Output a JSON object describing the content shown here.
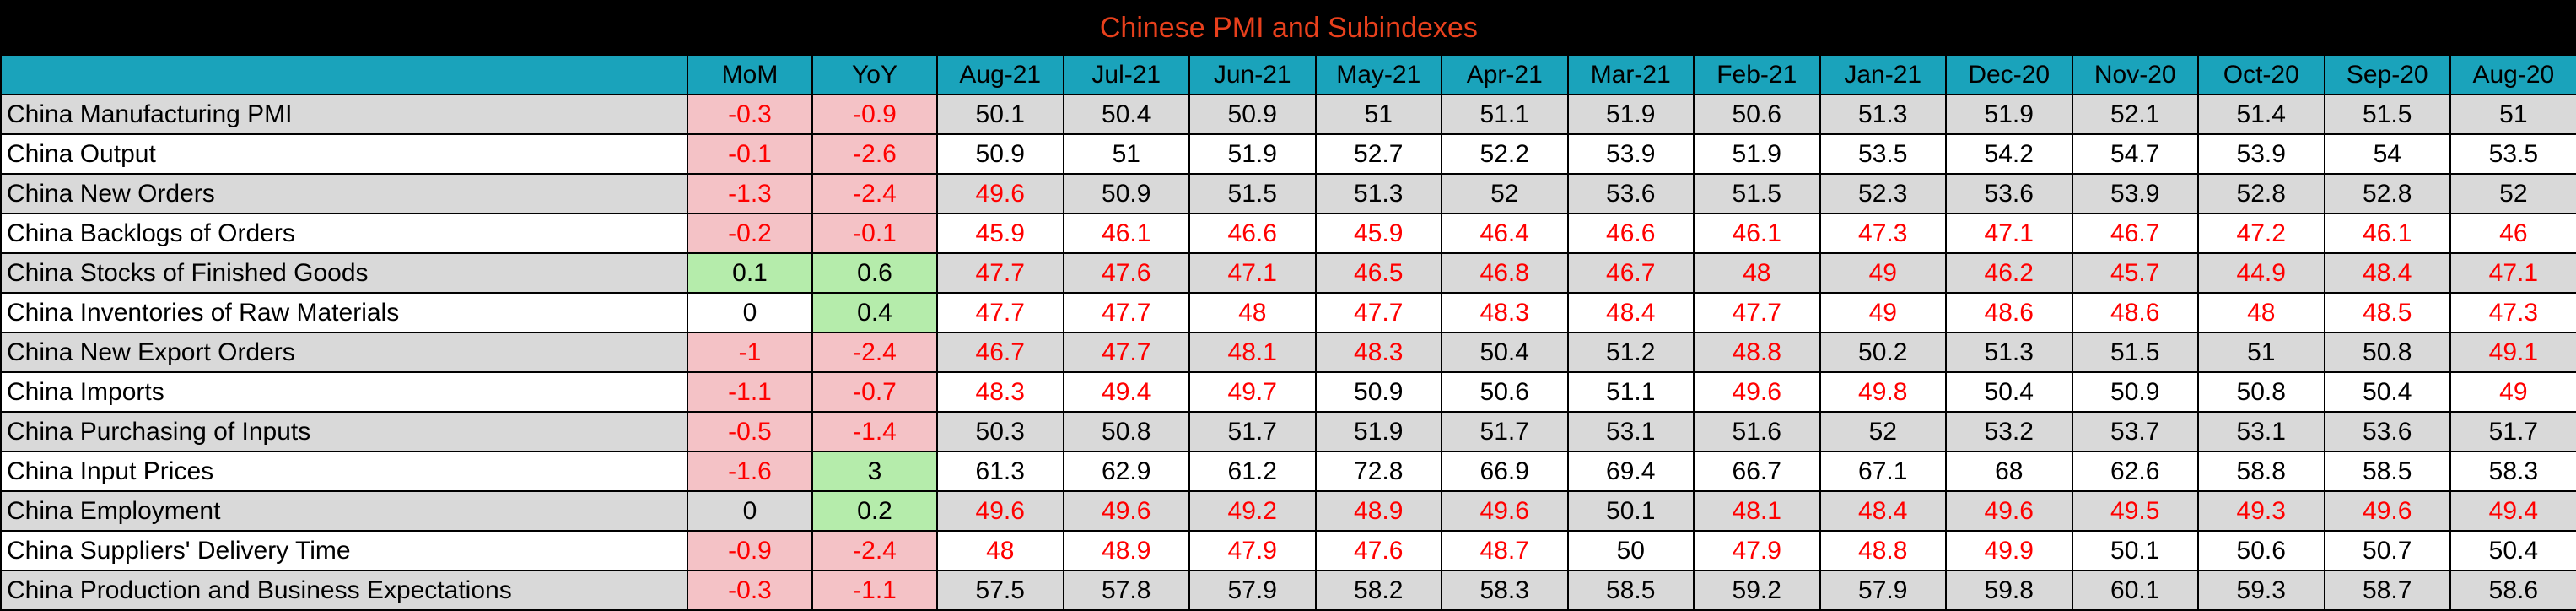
{
  "title": "Chinese PMI and Subindexes",
  "colors": {
    "title_bg": "#000000",
    "title_text": "#e8401c",
    "header_bg": "#1aa3bb",
    "row_shade": "#d9d9d9",
    "below_50_text": "#ff0000",
    "negative_change_bg": "#f4c2c6",
    "positive_change_bg": "#b5ecab"
  },
  "columns": [
    "",
    "MoM",
    "YoY",
    "Aug-21",
    "Jul-21",
    "Jun-21",
    "May-21",
    "Apr-21",
    "Mar-21",
    "Feb-21",
    "Jan-21",
    "Dec-20",
    "Nov-20",
    "Oct-20",
    "Sep-20",
    "Aug-20"
  ],
  "rows": [
    {
      "label": "China Manufacturing PMI",
      "mom": "-0.3",
      "yoy": "-0.9",
      "values": [
        "50.1",
        "50.4",
        "50.9",
        "51",
        "51.1",
        "51.9",
        "50.6",
        "51.3",
        "51.9",
        "52.1",
        "51.4",
        "51.5",
        "51"
      ]
    },
    {
      "label": "China Output",
      "mom": "-0.1",
      "yoy": "-2.6",
      "values": [
        "50.9",
        "51",
        "51.9",
        "52.7",
        "52.2",
        "53.9",
        "51.9",
        "53.5",
        "54.2",
        "54.7",
        "53.9",
        "54",
        "53.5"
      ]
    },
    {
      "label": "China New Orders",
      "mom": "-1.3",
      "yoy": "-2.4",
      "values": [
        "49.6",
        "50.9",
        "51.5",
        "51.3",
        "52",
        "53.6",
        "51.5",
        "52.3",
        "53.6",
        "53.9",
        "52.8",
        "52.8",
        "52"
      ]
    },
    {
      "label": "China Backlogs of Orders",
      "mom": "-0.2",
      "yoy": "-0.1",
      "values": [
        "45.9",
        "46.1",
        "46.6",
        "45.9",
        "46.4",
        "46.6",
        "46.1",
        "47.3",
        "47.1",
        "46.7",
        "47.2",
        "46.1",
        "46"
      ]
    },
    {
      "label": "China Stocks of Finished Goods",
      "mom": "0.1",
      "yoy": "0.6",
      "values": [
        "47.7",
        "47.6",
        "47.1",
        "46.5",
        "46.8",
        "46.7",
        "48",
        "49",
        "46.2",
        "45.7",
        "44.9",
        "48.4",
        "47.1"
      ]
    },
    {
      "label": "China Inventories of Raw Materials",
      "mom": "0",
      "yoy": "0.4",
      "values": [
        "47.7",
        "47.7",
        "48",
        "47.7",
        "48.3",
        "48.4",
        "47.7",
        "49",
        "48.6",
        "48.6",
        "48",
        "48.5",
        "47.3"
      ]
    },
    {
      "label": "China New Export Orders",
      "mom": "-1",
      "yoy": "-2.4",
      "values": [
        "46.7",
        "47.7",
        "48.1",
        "48.3",
        "50.4",
        "51.2",
        "48.8",
        "50.2",
        "51.3",
        "51.5",
        "51",
        "50.8",
        "49.1"
      ]
    },
    {
      "label": "China Imports",
      "mom": "-1.1",
      "yoy": "-0.7",
      "values": [
        "48.3",
        "49.4",
        "49.7",
        "50.9",
        "50.6",
        "51.1",
        "49.6",
        "49.8",
        "50.4",
        "50.9",
        "50.8",
        "50.4",
        "49"
      ]
    },
    {
      "label": "China Purchasing of Inputs",
      "mom": "-0.5",
      "yoy": "-1.4",
      "values": [
        "50.3",
        "50.8",
        "51.7",
        "51.9",
        "51.7",
        "53.1",
        "51.6",
        "52",
        "53.2",
        "53.7",
        "53.1",
        "53.6",
        "51.7"
      ]
    },
    {
      "label": "China Input Prices",
      "mom": "-1.6",
      "yoy": "3",
      "values": [
        "61.3",
        "62.9",
        "61.2",
        "72.8",
        "66.9",
        "69.4",
        "66.7",
        "67.1",
        "68",
        "62.6",
        "58.8",
        "58.5",
        "58.3"
      ]
    },
    {
      "label": "China Employment",
      "mom": "0",
      "yoy": "0.2",
      "values": [
        "49.6",
        "49.6",
        "49.2",
        "48.9",
        "49.6",
        "50.1",
        "48.1",
        "48.4",
        "49.6",
        "49.5",
        "49.3",
        "49.6",
        "49.4"
      ]
    },
    {
      "label": "China Suppliers' Delivery Time",
      "mom": "-0.9",
      "yoy": "-2.4",
      "values": [
        "48",
        "48.9",
        "47.9",
        "47.6",
        "48.7",
        "50",
        "47.9",
        "48.8",
        "49.9",
        "50.1",
        "50.6",
        "50.7",
        "50.4"
      ]
    },
    {
      "label": "China Production and Business Expectations",
      "mom": "-0.3",
      "yoy": "-1.1",
      "values": [
        "57.5",
        "57.8",
        "57.9",
        "58.2",
        "58.3",
        "58.5",
        "59.2",
        "57.9",
        "59.8",
        "60.1",
        "59.3",
        "58.7",
        "58.6"
      ]
    }
  ]
}
